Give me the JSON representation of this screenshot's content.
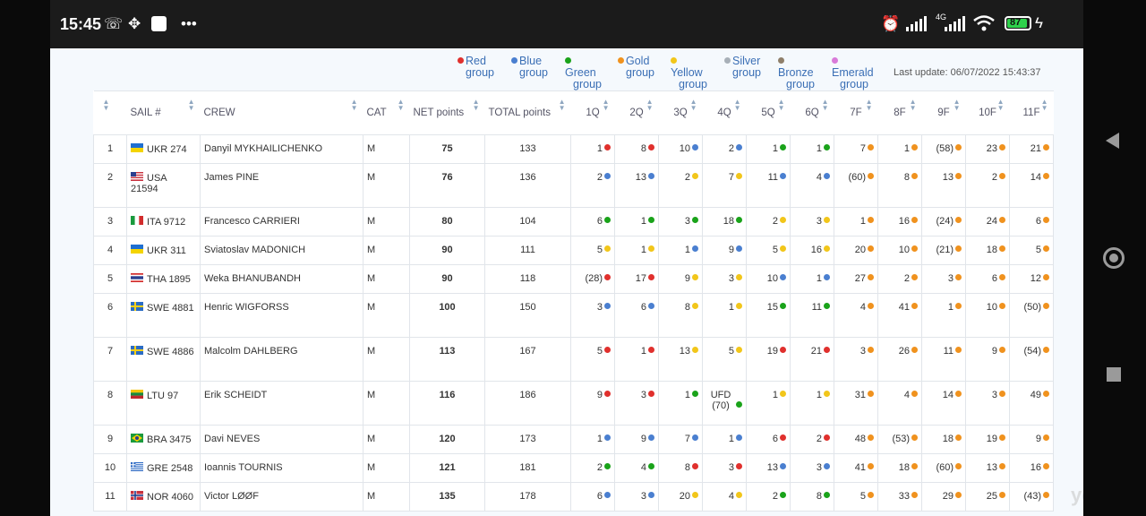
{
  "status": {
    "time": "15:45",
    "battery": "87",
    "net": "4G"
  },
  "legend": [
    {
      "label": "Red group",
      "color": "#e0302d"
    },
    {
      "label": "Blue group",
      "color": "#4a7fd0"
    },
    {
      "label": "Green group",
      "color": "#1aa31a"
    },
    {
      "label": "Gold group",
      "color": "#f0921e"
    },
    {
      "label": "Yellow group",
      "color": "#f2c61a"
    },
    {
      "label": "Silver group",
      "color": "#a8b0b8"
    },
    {
      "label": "Bronze group",
      "color": "#8f7f6a"
    },
    {
      "label": "Emerald group",
      "color": "#d97bd9"
    }
  ],
  "last_update": "Last update: 06/07/2022 15:43:37",
  "headers": {
    "sail": "SAIL #",
    "crew": "CREW",
    "cat": "CAT",
    "net": "NET points",
    "total": "TOTAL points",
    "races": [
      "1Q",
      "2Q",
      "3Q",
      "4Q",
      "5Q",
      "6Q",
      "7F",
      "8F",
      "9F",
      "10F",
      "11F"
    ]
  },
  "rows": [
    {
      "pos": "1",
      "flag": "ukr",
      "sail": "UKR 274",
      "crew": "Danyil MYKHAILICHENKO",
      "cat": "M",
      "net": "75",
      "total": "133",
      "races": [
        [
          "1",
          "red"
        ],
        [
          "8",
          "red"
        ],
        [
          "10",
          "blue"
        ],
        [
          "2",
          "blue"
        ],
        [
          "1",
          "green"
        ],
        [
          "1",
          "green"
        ],
        [
          "7",
          "gold"
        ],
        [
          "1",
          "gold"
        ],
        [
          "(58)",
          "gold"
        ],
        [
          "23",
          "gold"
        ],
        [
          "21",
          "gold"
        ]
      ]
    },
    {
      "pos": "2",
      "flag": "usa",
      "sail": "USA 21594",
      "crew": "James PINE",
      "cat": "M",
      "net": "76",
      "total": "136",
      "races": [
        [
          "2",
          "blue"
        ],
        [
          "13",
          "blue"
        ],
        [
          "2",
          "yellow"
        ],
        [
          "7",
          "yellow"
        ],
        [
          "11",
          "blue"
        ],
        [
          "4",
          "blue"
        ],
        [
          "(60)",
          "gold"
        ],
        [
          "8",
          "gold"
        ],
        [
          "13",
          "gold"
        ],
        [
          "2",
          "gold"
        ],
        [
          "14",
          "gold"
        ]
      ]
    },
    {
      "pos": "3",
      "flag": "ita",
      "sail": "ITA 9712",
      "crew": "Francesco CARRIERI",
      "cat": "M",
      "net": "80",
      "total": "104",
      "races": [
        [
          "6",
          "green"
        ],
        [
          "1",
          "green"
        ],
        [
          "3",
          "green"
        ],
        [
          "18",
          "green"
        ],
        [
          "2",
          "yellow"
        ],
        [
          "3",
          "yellow"
        ],
        [
          "1",
          "gold"
        ],
        [
          "16",
          "gold"
        ],
        [
          "(24)",
          "gold"
        ],
        [
          "24",
          "gold"
        ],
        [
          "6",
          "gold"
        ]
      ]
    },
    {
      "pos": "4",
      "flag": "ukr",
      "sail": "UKR 311",
      "crew": "Sviatoslav MADONICH",
      "cat": "M",
      "net": "90",
      "total": "111",
      "races": [
        [
          "5",
          "yellow"
        ],
        [
          "1",
          "yellow"
        ],
        [
          "1",
          "blue"
        ],
        [
          "9",
          "blue"
        ],
        [
          "5",
          "yellow"
        ],
        [
          "16",
          "yellow"
        ],
        [
          "20",
          "gold"
        ],
        [
          "10",
          "gold"
        ],
        [
          "(21)",
          "gold"
        ],
        [
          "18",
          "gold"
        ],
        [
          "5",
          "gold"
        ]
      ]
    },
    {
      "pos": "5",
      "flag": "tha",
      "sail": "THA 1895",
      "crew": "Weka BHANUBANDH",
      "cat": "M",
      "net": "90",
      "total": "118",
      "races": [
        [
          "(28)",
          "red"
        ],
        [
          "17",
          "red"
        ],
        [
          "9",
          "yellow"
        ],
        [
          "3",
          "yellow"
        ],
        [
          "10",
          "blue"
        ],
        [
          "1",
          "blue"
        ],
        [
          "27",
          "gold"
        ],
        [
          "2",
          "gold"
        ],
        [
          "3",
          "gold"
        ],
        [
          "6",
          "gold"
        ],
        [
          "12",
          "gold"
        ]
      ]
    },
    {
      "pos": "6",
      "flag": "swe",
      "sail": "SWE 4881",
      "crew": "Henric WIGFORSS",
      "cat": "M",
      "net": "100",
      "total": "150",
      "races": [
        [
          "3",
          "blue"
        ],
        [
          "6",
          "blue"
        ],
        [
          "8",
          "yellow"
        ],
        [
          "1",
          "yellow"
        ],
        [
          "15",
          "green"
        ],
        [
          "11",
          "green"
        ],
        [
          "4",
          "gold"
        ],
        [
          "41",
          "gold"
        ],
        [
          "1",
          "gold"
        ],
        [
          "10",
          "gold"
        ],
        [
          "(50)",
          "gold"
        ]
      ]
    },
    {
      "pos": "7",
      "flag": "swe",
      "sail": "SWE 4886",
      "crew": "Malcolm DAHLBERG",
      "cat": "M",
      "net": "113",
      "total": "167",
      "races": [
        [
          "5",
          "red"
        ],
        [
          "1",
          "red"
        ],
        [
          "13",
          "yellow"
        ],
        [
          "5",
          "yellow"
        ],
        [
          "19",
          "red"
        ],
        [
          "21",
          "red"
        ],
        [
          "3",
          "gold"
        ],
        [
          "26",
          "gold"
        ],
        [
          "11",
          "gold"
        ],
        [
          "9",
          "gold"
        ],
        [
          "(54)",
          "gold"
        ]
      ]
    },
    {
      "pos": "8",
      "flag": "ltu",
      "sail": "LTU 97",
      "crew": "Erik SCHEIDT",
      "cat": "M",
      "net": "116",
      "total": "186",
      "races": [
        [
          "9",
          "red"
        ],
        [
          "3",
          "red"
        ],
        [
          "1",
          "green"
        ],
        [
          "UFD (70)",
          "green"
        ],
        [
          "1",
          "yellow"
        ],
        [
          "1",
          "yellow"
        ],
        [
          "31",
          "gold"
        ],
        [
          "4",
          "gold"
        ],
        [
          "14",
          "gold"
        ],
        [
          "3",
          "gold"
        ],
        [
          "49",
          "gold"
        ]
      ]
    },
    {
      "pos": "9",
      "flag": "bra",
      "sail": "BRA 3475",
      "crew": "Davi NEVES",
      "cat": "M",
      "net": "120",
      "total": "173",
      "races": [
        [
          "1",
          "blue"
        ],
        [
          "9",
          "blue"
        ],
        [
          "7",
          "blue"
        ],
        [
          "1",
          "blue"
        ],
        [
          "6",
          "red"
        ],
        [
          "2",
          "red"
        ],
        [
          "48",
          "gold"
        ],
        [
          "(53)",
          "gold"
        ],
        [
          "18",
          "gold"
        ],
        [
          "19",
          "gold"
        ],
        [
          "9",
          "gold"
        ]
      ]
    },
    {
      "pos": "10",
      "flag": "gre",
      "sail": "GRE 2548",
      "crew": "Ioannis TOURNIS",
      "cat": "M",
      "net": "121",
      "total": "181",
      "races": [
        [
          "2",
          "green"
        ],
        [
          "4",
          "green"
        ],
        [
          "8",
          "red"
        ],
        [
          "3",
          "red"
        ],
        [
          "13",
          "blue"
        ],
        [
          "3",
          "blue"
        ],
        [
          "41",
          "gold"
        ],
        [
          "18",
          "gold"
        ],
        [
          "(60)",
          "gold"
        ],
        [
          "13",
          "gold"
        ],
        [
          "16",
          "gold"
        ]
      ]
    },
    {
      "pos": "11",
      "flag": "nor",
      "sail": "NOR 4060",
      "crew": "Victor LØØF",
      "cat": "M",
      "net": "135",
      "total": "178",
      "races": [
        [
          "6",
          "blue"
        ],
        [
          "3",
          "blue"
        ],
        [
          "20",
          "yellow"
        ],
        [
          "4",
          "yellow"
        ],
        [
          "2",
          "green"
        ],
        [
          "8",
          "green"
        ],
        [
          "5",
          "gold"
        ],
        [
          "33",
          "gold"
        ],
        [
          "29",
          "gold"
        ],
        [
          "25",
          "gold"
        ],
        [
          "(43)",
          "gold"
        ]
      ]
    }
  ],
  "watermark": "yg.info"
}
